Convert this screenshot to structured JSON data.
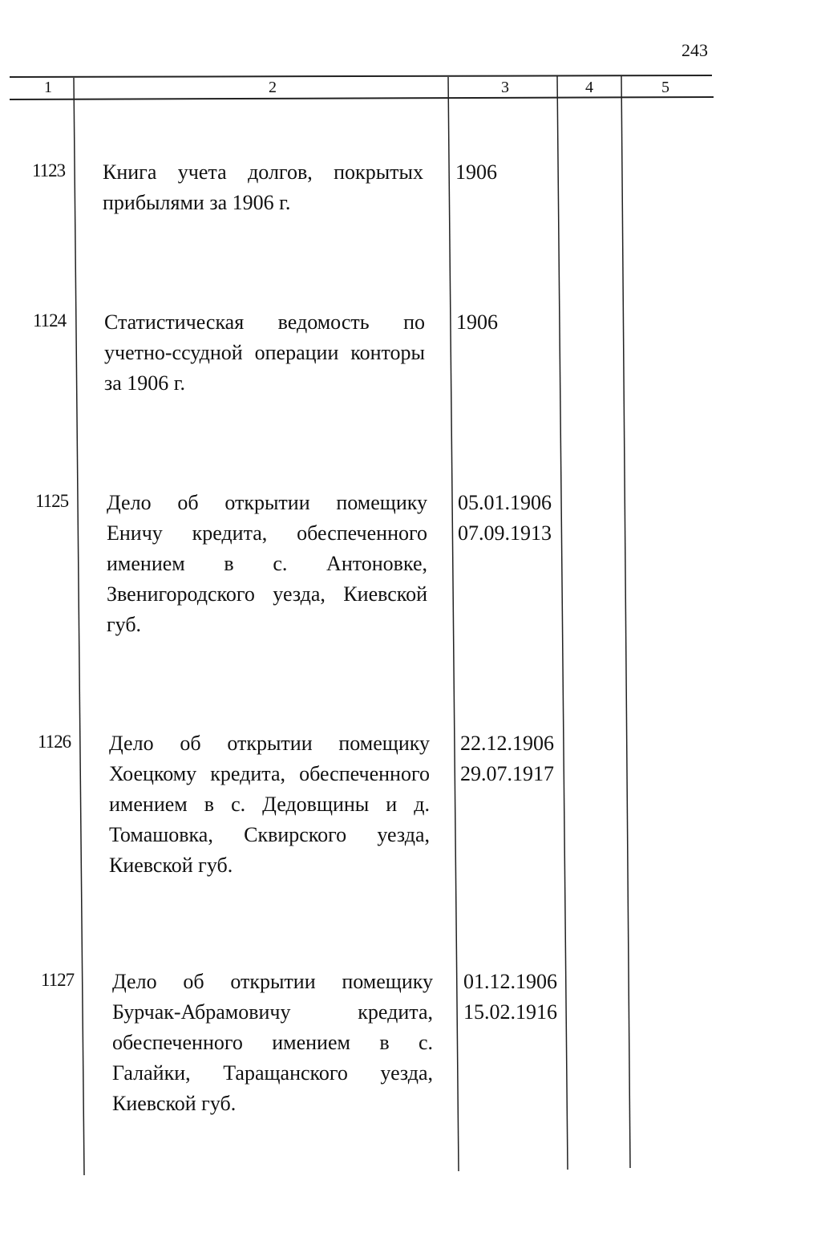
{
  "page_number": "243",
  "columns": [
    "1",
    "2",
    "3",
    "4",
    "5"
  ],
  "entries": [
    {
      "number": "1123",
      "lines": [
        "Книга учета долгов, покрытых",
        "прибылями за 1906 г."
      ],
      "dates": [
        "1906"
      ]
    },
    {
      "number": "1124",
      "lines": [
        "Статистическая ведомость по",
        "учетно-ссудной операции конторы",
        "за 1906 г."
      ],
      "dates": [
        "1906"
      ]
    },
    {
      "number": "1125",
      "lines": [
        "Дело об открытии помещику",
        "Еничу кредита, обеспеченного",
        "имением в с. Антоновке,",
        "Звенигородского уезда, Киевской",
        "губ."
      ],
      "dates": [
        "05.01.1906",
        "07.09.1913"
      ]
    },
    {
      "number": "1126",
      "lines": [
        "Дело об открытии помещику",
        "Хоецкому кредита, обеспеченного",
        "имением в с. Дедовщины и д.",
        "Томашовка, Сквирского уезда,",
        "Киевской губ."
      ],
      "dates": [
        "22.12.1906",
        "29.07.1917"
      ]
    },
    {
      "number": "1127",
      "lines": [
        "Дело об открытии помещику",
        "Бурчак-Абрамовичу кредита,",
        "обеспеченного имением в с.",
        "Галайки, Таращанского уезда,",
        "Киевской губ."
      ],
      "dates": [
        "01.12.1906",
        "15.02.1916"
      ]
    }
  ]
}
